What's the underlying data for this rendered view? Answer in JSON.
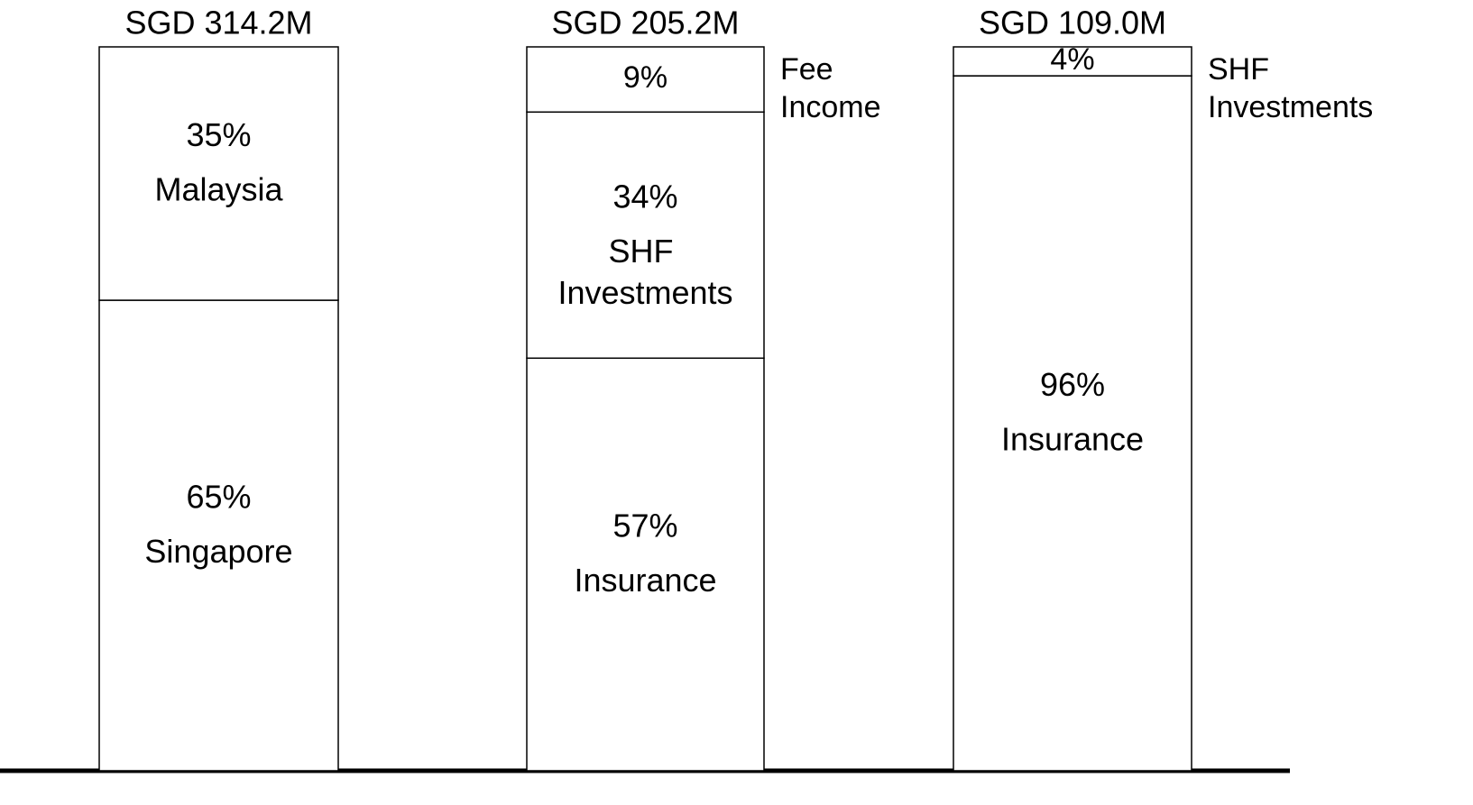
{
  "chart_data": {
    "type": "stacked_bar_100",
    "ylim": [
      0,
      100
    ],
    "bars": [
      {
        "total_label": "SGD 314.2M",
        "names": [
          "Singapore",
          "Malaysia"
        ],
        "values": [
          65,
          35
        ],
        "value_labels": [
          "65%",
          "35%"
        ]
      },
      {
        "total_label": "SGD 205.2M",
        "names": [
          "Insurance",
          "SHF Investments",
          "Fee Income"
        ],
        "values": [
          57,
          34,
          9
        ],
        "value_labels": [
          "57%",
          "34%",
          "9%"
        ]
      },
      {
        "total_label": "SGD 109.0M",
        "names": [
          "Insurance",
          "SHF Investments"
        ],
        "values": [
          96,
          4
        ],
        "value_labels": [
          "96%",
          "4%"
        ]
      }
    ]
  }
}
